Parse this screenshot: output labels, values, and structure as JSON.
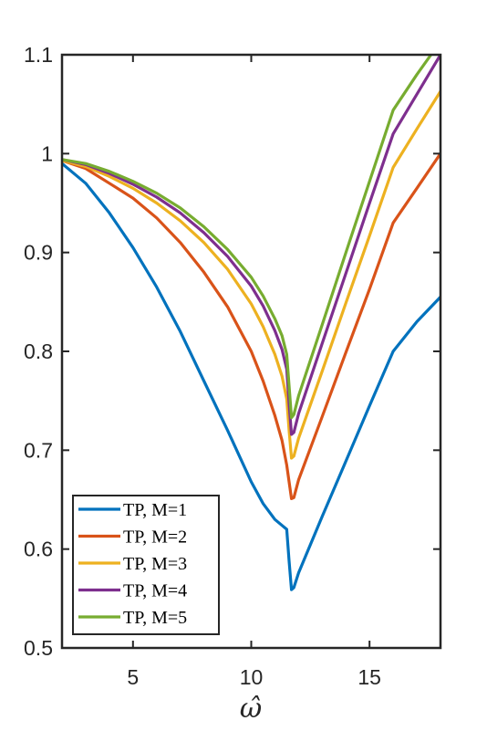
{
  "chart_data": {
    "type": "line",
    "title": "",
    "xlabel": "ω̂",
    "ylabel": "",
    "xlim": [
      2,
      18
    ],
    "ylim": [
      0.5,
      1.1
    ],
    "xticks": [
      5,
      10,
      15
    ],
    "yticks": [
      0.5,
      0.6,
      0.7,
      0.8,
      0.9,
      1,
      1.1
    ],
    "xtick_labels": [
      "5",
      "10",
      "15"
    ],
    "ytick_labels": [
      "0.5",
      "0.6",
      "0.7",
      "0.8",
      "0.9",
      "1",
      "1.1"
    ],
    "grid": false,
    "legend_position": "bottom-left",
    "series": [
      {
        "name": "TP, M=1",
        "color": "#0072BD",
        "x": [
          2,
          3,
          4,
          5,
          6,
          7,
          8,
          9,
          10,
          10.5,
          11,
          11.3,
          11.5,
          11.6,
          11.7,
          11.8,
          12,
          13,
          14,
          15,
          16,
          17,
          18
        ],
        "y": [
          0.99,
          0.97,
          0.94,
          0.905,
          0.865,
          0.82,
          0.77,
          0.72,
          0.668,
          0.646,
          0.63,
          0.624,
          0.62,
          0.588,
          0.559,
          0.561,
          0.576,
          0.633,
          0.689,
          0.745,
          0.8,
          0.83,
          0.855
        ]
      },
      {
        "name": "TP, M=2",
        "color": "#D95319",
        "x": [
          2,
          3,
          4,
          5,
          6,
          7,
          8,
          9,
          10,
          10.5,
          11,
          11.3,
          11.5,
          11.6,
          11.7,
          11.8,
          12,
          13,
          14,
          15,
          16,
          17,
          18
        ],
        "y": [
          0.993,
          0.985,
          0.97,
          0.955,
          0.935,
          0.91,
          0.88,
          0.845,
          0.8,
          0.77,
          0.735,
          0.71,
          0.685,
          0.668,
          0.651,
          0.652,
          0.67,
          0.734,
          0.799,
          0.863,
          0.93,
          0.965,
          1.0
        ]
      },
      {
        "name": "TP, M=3",
        "color": "#EDB120",
        "x": [
          2,
          3,
          4,
          5,
          6,
          7,
          8,
          9,
          10,
          10.5,
          11,
          11.3,
          11.5,
          11.6,
          11.7,
          11.8,
          12,
          13,
          14,
          15,
          16,
          17,
          18
        ],
        "y": [
          0.993,
          0.987,
          0.977,
          0.965,
          0.95,
          0.932,
          0.91,
          0.883,
          0.848,
          0.825,
          0.797,
          0.775,
          0.752,
          0.72,
          0.692,
          0.694,
          0.712,
          0.78,
          0.849,
          0.917,
          0.986,
          1.025,
          1.063
        ]
      },
      {
        "name": "TP, M=4",
        "color": "#7E2F8E",
        "x": [
          2,
          3,
          4,
          5,
          6,
          7,
          8,
          9,
          10,
          10.5,
          11,
          11.3,
          11.5,
          11.6,
          11.7,
          11.8,
          12,
          13,
          14,
          15,
          16,
          17,
          18
        ],
        "y": [
          0.994,
          0.989,
          0.98,
          0.969,
          0.956,
          0.94,
          0.92,
          0.896,
          0.866,
          0.846,
          0.821,
          0.802,
          0.782,
          0.747,
          0.716,
          0.718,
          0.737,
          0.808,
          0.879,
          0.95,
          1.02,
          1.06,
          1.1
        ]
      },
      {
        "name": "TP, M=5",
        "color": "#77AC30",
        "x": [
          2,
          3,
          4,
          5,
          6,
          7,
          8,
          9,
          10,
          10.5,
          11,
          11.3,
          11.5,
          11.6,
          11.7,
          11.8,
          12,
          13,
          14,
          15,
          16,
          17,
          17.6
        ],
        "y": [
          0.994,
          0.99,
          0.982,
          0.972,
          0.96,
          0.945,
          0.926,
          0.903,
          0.875,
          0.856,
          0.833,
          0.816,
          0.797,
          0.765,
          0.733,
          0.736,
          0.755,
          0.827,
          0.9,
          0.972,
          1.044,
          1.08,
          1.1
        ]
      }
    ]
  }
}
